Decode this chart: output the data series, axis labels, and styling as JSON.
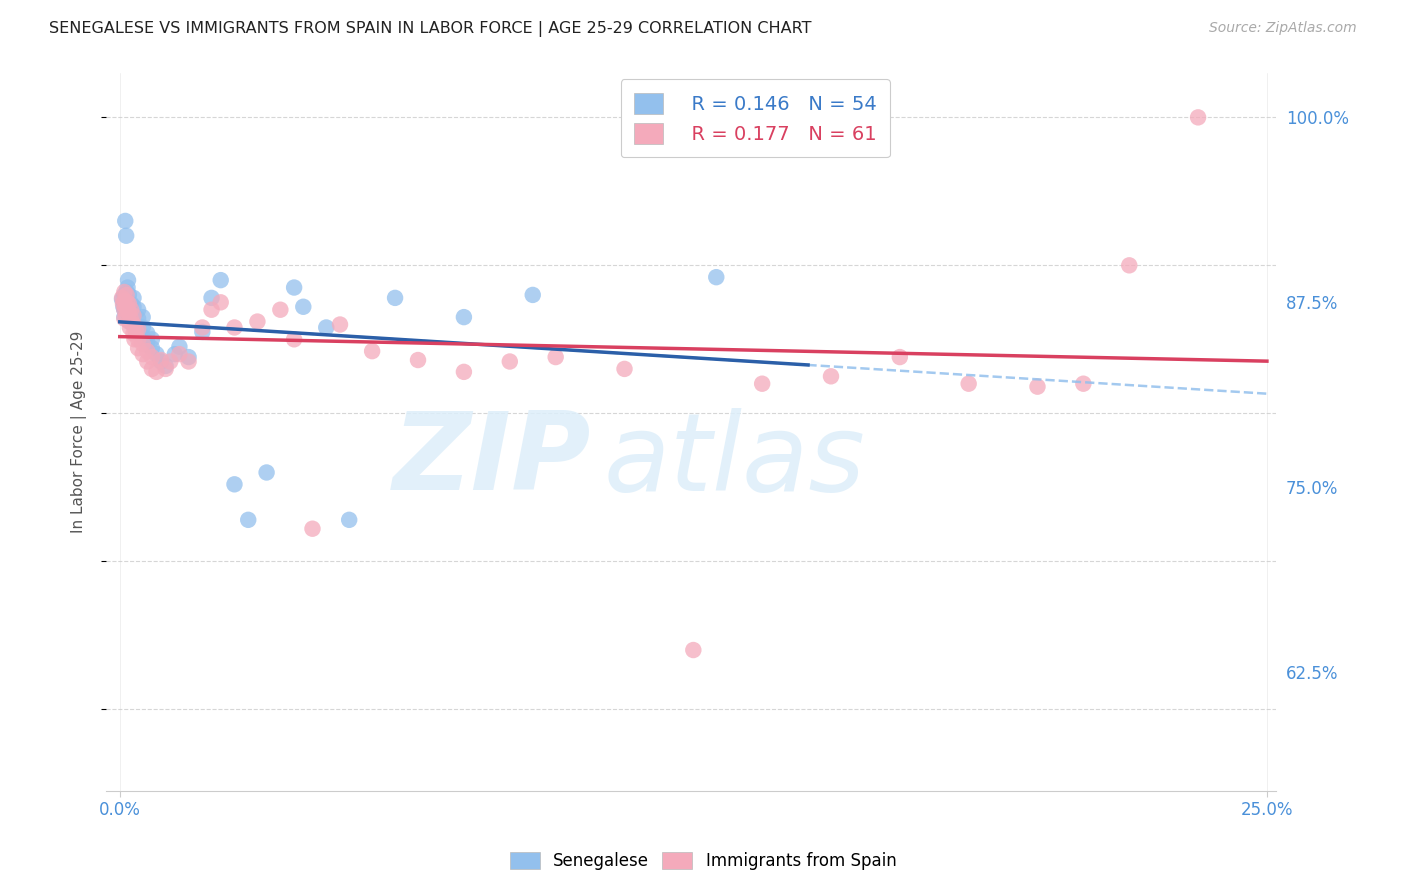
{
  "title": "SENEGALESE VS IMMIGRANTS FROM SPAIN IN LABOR FORCE | AGE 25-29 CORRELATION CHART",
  "source": "Source: ZipAtlas.com",
  "ylabel": "In Labor Force | Age 25-29",
  "xlim": [
    -0.003,
    0.252
  ],
  "ylim": [
    0.545,
    1.03
  ],
  "ytick_vals": [
    0.625,
    0.75,
    0.875,
    1.0
  ],
  "ytick_labels": [
    "62.5%",
    "75.0%",
    "87.5%",
    "100.0%"
  ],
  "xtick_labels": [
    "0.0%",
    "25.0%"
  ],
  "legend_r_blue": "R = 0.146",
  "legend_n_blue": "N = 54",
  "legend_r_pink": "R = 0.177",
  "legend_n_pink": "N = 61",
  "blue_scatter_color": "#93C0ED",
  "pink_scatter_color": "#F4AABB",
  "blue_line_color": "#2B5FA8",
  "pink_line_color": "#D94060",
  "blue_dashed_color": "#93C0ED",
  "grid_color": "#CCCCCC",
  "tick_color": "#4A90D9",
  "senegalese_x": [
    0.0005,
    0.0008,
    0.001,
    0.001,
    0.001,
    0.001,
    0.0012,
    0.0014,
    0.0015,
    0.0015,
    0.0016,
    0.0017,
    0.0018,
    0.002,
    0.002,
    0.002,
    0.0022,
    0.0023,
    0.0025,
    0.003,
    0.003,
    0.003,
    0.003,
    0.0035,
    0.004,
    0.004,
    0.004,
    0.005,
    0.005,
    0.005,
    0.006,
    0.006,
    0.007,
    0.007,
    0.008,
    0.009,
    0.01,
    0.012,
    0.013,
    0.015,
    0.018,
    0.02,
    0.022,
    0.025,
    0.028,
    0.032,
    0.038,
    0.04,
    0.045,
    0.05,
    0.06,
    0.075,
    0.09,
    0.13
  ],
  "senegalese_y": [
    0.877,
    0.872,
    0.88,
    0.875,
    0.87,
    0.865,
    0.93,
    0.92,
    0.882,
    0.876,
    0.878,
    0.885,
    0.89,
    0.868,
    0.875,
    0.88,
    0.862,
    0.87,
    0.874,
    0.86,
    0.866,
    0.872,
    0.878,
    0.855,
    0.858,
    0.864,
    0.87,
    0.852,
    0.858,
    0.865,
    0.848,
    0.854,
    0.844,
    0.85,
    0.84,
    0.835,
    0.832,
    0.84,
    0.845,
    0.838,
    0.855,
    0.878,
    0.89,
    0.752,
    0.728,
    0.76,
    0.885,
    0.872,
    0.858,
    0.728,
    0.878,
    0.865,
    0.88,
    0.892
  ],
  "spain_x": [
    0.0005,
    0.0007,
    0.001,
    0.001,
    0.001,
    0.001,
    0.0012,
    0.0014,
    0.0015,
    0.0016,
    0.0018,
    0.002,
    0.002,
    0.002,
    0.0022,
    0.0024,
    0.0025,
    0.003,
    0.003,
    0.003,
    0.0032,
    0.0035,
    0.004,
    0.004,
    0.004,
    0.005,
    0.005,
    0.006,
    0.006,
    0.007,
    0.007,
    0.008,
    0.009,
    0.01,
    0.011,
    0.013,
    0.015,
    0.018,
    0.02,
    0.022,
    0.025,
    0.03,
    0.035,
    0.038,
    0.042,
    0.048,
    0.055,
    0.065,
    0.075,
    0.085,
    0.095,
    0.11,
    0.125,
    0.14,
    0.155,
    0.17,
    0.185,
    0.2,
    0.21,
    0.22,
    0.235
  ],
  "spain_y": [
    0.878,
    0.874,
    0.882,
    0.876,
    0.87,
    0.864,
    0.872,
    0.866,
    0.88,
    0.875,
    0.87,
    0.862,
    0.868,
    0.874,
    0.858,
    0.864,
    0.87,
    0.854,
    0.86,
    0.866,
    0.85,
    0.856,
    0.844,
    0.85,
    0.857,
    0.84,
    0.847,
    0.835,
    0.842,
    0.83,
    0.838,
    0.828,
    0.836,
    0.83,
    0.835,
    0.84,
    0.835,
    0.858,
    0.87,
    0.875,
    0.858,
    0.862,
    0.87,
    0.85,
    0.722,
    0.86,
    0.842,
    0.836,
    0.828,
    0.835,
    0.838,
    0.83,
    0.64,
    0.82,
    0.825,
    0.838,
    0.82,
    0.818,
    0.82,
    0.9,
    1.0
  ]
}
